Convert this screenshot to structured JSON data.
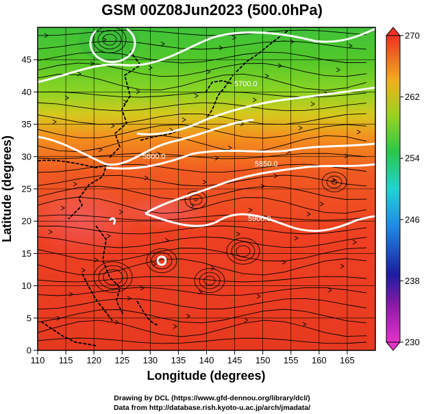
{
  "title": "GSM 00Z08Jun2023 (500.0hPa)",
  "xlabel": "Longitude (degrees)",
  "ylabel": "Latitude  (degrees)",
  "credits": [
    "Drawing by DCL (https://www.gfd-dennou.org/library/dcl/)",
    "Data from http://database.rish.kyoto-u.ac.jp/arch/jmadata/"
  ],
  "map": {
    "lon_range": [
      110,
      170
    ],
    "lat_range": [
      0,
      50
    ],
    "lon_ticks": [
      "110",
      "115",
      "120",
      "125",
      "130",
      "135",
      "140",
      "145",
      "150",
      "155",
      "160",
      "165"
    ],
    "lat_ticks": [
      "0",
      "5",
      "10",
      "15",
      "20",
      "25",
      "30",
      "35",
      "40",
      "45"
    ],
    "contour_labels": [
      "5700.0",
      "5800.0",
      "5850.0",
      "5900.0"
    ],
    "colorbar": {
      "ticks": [
        "270",
        "262",
        "254",
        "246",
        "238",
        "230"
      ],
      "range": [
        230,
        270
      ]
    },
    "colors": {
      "warm": "#e8331f",
      "mid": "#f2a21a",
      "cool": "#4ac62a",
      "contour": "#ffffff"
    }
  }
}
